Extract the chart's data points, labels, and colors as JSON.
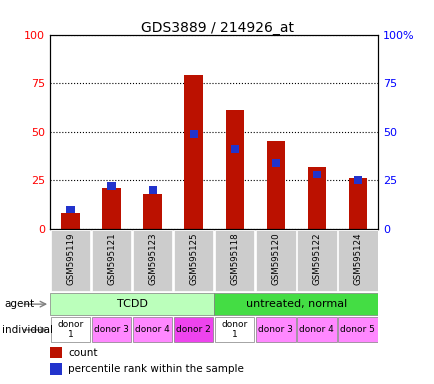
{
  "title": "GDS3889 / 214926_at",
  "samples": [
    "GSM595119",
    "GSM595121",
    "GSM595123",
    "GSM595125",
    "GSM595118",
    "GSM595120",
    "GSM595122",
    "GSM595124"
  ],
  "count_values": [
    8,
    21,
    18,
    79,
    61,
    45,
    32,
    26
  ],
  "percentile_values": [
    10,
    22,
    20,
    49,
    41,
    34,
    28,
    25
  ],
  "bar_color": "#bb1100",
  "percentile_color": "#2233cc",
  "ylim": [
    0,
    100
  ],
  "yticks": [
    0,
    25,
    50,
    75,
    100
  ],
  "ytick_labels_left": [
    "0",
    "25",
    "50",
    "75",
    "100"
  ],
  "ytick_labels_right": [
    "0",
    "25",
    "50",
    "75",
    "100%"
  ],
  "agent_labels": [
    "TCDD",
    "untreated, normal"
  ],
  "agent_color_light": "#bbffbb",
  "agent_color_dark": "#44dd44",
  "individual_labels": [
    "donor\n1",
    "donor 3",
    "donor 4",
    "donor 2",
    "donor\n1",
    "donor 3",
    "donor 4",
    "donor 5"
  ],
  "individual_colors": [
    "#ffffff",
    "#ff88ff",
    "#ff88ff",
    "#ee44ee",
    "#ffffff",
    "#ff88ff",
    "#ff88ff",
    "#ff88ff"
  ],
  "label_agent": "agent",
  "label_individual": "individual",
  "xtick_bg": "#cccccc",
  "bar_width": 0.45,
  "percentile_bar_width": 0.2,
  "percentile_bar_height": 4
}
